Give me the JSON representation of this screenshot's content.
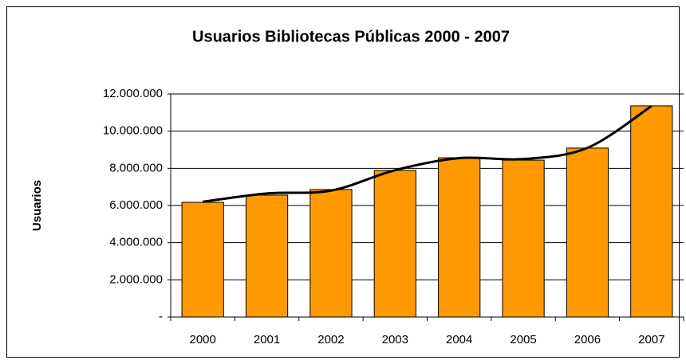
{
  "chart_data": {
    "type": "bar",
    "title": "Usuarios Bibliotecas Públicas 2000 -  2007",
    "y_label": "Usuarios",
    "categories": [
      "2000",
      "2001",
      "2002",
      "2003",
      "2004",
      "2005",
      "2006",
      "2007"
    ],
    "series": [
      {
        "type": "bar",
        "color": "#ff9900",
        "values": [
          6170000,
          6560000,
          6860000,
          7890000,
          8570000,
          8440000,
          9090000,
          11360000
        ]
      },
      {
        "type": "line",
        "color": "#000000",
        "smooth": true,
        "values": [
          6200000,
          6650000,
          6800000,
          7900000,
          8550000,
          8500000,
          9100000,
          11350000
        ]
      }
    ],
    "ylim": [
      0,
      12000000
    ],
    "yticks": [
      {
        "value": 0,
        "label": "-"
      },
      {
        "value": 2000000,
        "label": "2.000.000"
      },
      {
        "value": 4000000,
        "label": "4.000.000"
      },
      {
        "value": 6000000,
        "label": "6.000.000"
      },
      {
        "value": 8000000,
        "label": "8.000.000"
      },
      {
        "value": 10000000,
        "label": "10.000.000"
      },
      {
        "value": 12000000,
        "label": "12.000.000"
      }
    ],
    "grid": true
  }
}
